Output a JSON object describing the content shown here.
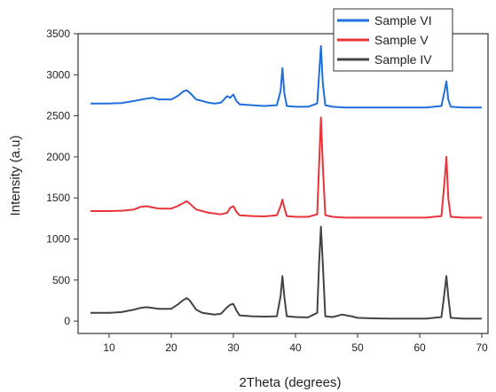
{
  "chart_data": {
    "type": "line",
    "title": "",
    "xlabel": "2Theta (degrees)",
    "ylabel": "Intensity (a.u)",
    "xlim": [
      5,
      71
    ],
    "ylim": [
      -150,
      3500
    ],
    "xticks": [
      10,
      20,
      30,
      40,
      50,
      60,
      70
    ],
    "yticks": [
      0,
      500,
      1000,
      1500,
      2000,
      2500,
      3000,
      3500
    ],
    "grid": false,
    "legend": "top-right",
    "colors": {
      "Sample VI": "#1f6fdc",
      "Sample V": "#e8343a",
      "Sample IV": "#444444"
    },
    "series": [
      {
        "name": "Sample VI",
        "x": [
          7,
          10,
          12,
          14,
          16,
          17,
          18,
          20,
          21,
          22,
          22.5,
          23,
          24,
          25,
          26,
          27,
          28,
          29,
          29.5,
          30,
          30.5,
          31,
          33,
          35,
          37,
          37.6,
          37.9,
          38.2,
          38.6,
          40,
          42,
          43.5,
          43.8,
          44.1,
          44.4,
          44.8,
          46,
          48,
          50,
          52,
          55,
          58,
          61,
          63.5,
          64.0,
          64.3,
          64.6,
          65,
          67,
          70
        ],
        "y": [
          2650,
          2650,
          2655,
          2680,
          2710,
          2720,
          2700,
          2700,
          2740,
          2800,
          2810,
          2780,
          2700,
          2680,
          2660,
          2650,
          2660,
          2740,
          2720,
          2760,
          2680,
          2640,
          2630,
          2620,
          2630,
          2800,
          3080,
          2780,
          2620,
          2610,
          2610,
          2650,
          3000,
          3350,
          2900,
          2630,
          2610,
          2600,
          2600,
          2600,
          2600,
          2600,
          2600,
          2620,
          2800,
          2920,
          2700,
          2610,
          2600,
          2600
        ]
      },
      {
        "name": "Sample V",
        "x": [
          7,
          10,
          12,
          14,
          15,
          16,
          17,
          18,
          20,
          21,
          22,
          22.5,
          23,
          24,
          25,
          26,
          27,
          28,
          29,
          29.5,
          30,
          30.5,
          31,
          33,
          35,
          37,
          37.6,
          37.9,
          38.2,
          38.6,
          40,
          42,
          43.5,
          43.8,
          44.1,
          44.4,
          44.8,
          46,
          48,
          50,
          52,
          55,
          58,
          61,
          63.5,
          64.0,
          64.3,
          64.6,
          65,
          67,
          70
        ],
        "y": [
          1340,
          1340,
          1345,
          1360,
          1390,
          1400,
          1385,
          1370,
          1370,
          1400,
          1440,
          1460,
          1430,
          1360,
          1340,
          1320,
          1310,
          1300,
          1320,
          1380,
          1400,
          1330,
          1290,
          1280,
          1275,
          1290,
          1400,
          1480,
          1380,
          1280,
          1270,
          1270,
          1300,
          1900,
          2480,
          1900,
          1290,
          1270,
          1260,
          1260,
          1260,
          1260,
          1260,
          1260,
          1280,
          1700,
          2000,
          1500,
          1270,
          1260,
          1260
        ]
      },
      {
        "name": "Sample IV",
        "x": [
          7,
          10,
          12,
          14,
          15,
          16,
          17,
          18,
          20,
          21,
          22,
          22.5,
          23,
          24,
          25,
          26,
          27,
          28,
          29,
          29.5,
          30,
          30.5,
          31,
          33,
          35,
          37,
          37.6,
          37.9,
          38.2,
          38.6,
          40,
          42,
          43.5,
          43.8,
          44.1,
          44.4,
          44.8,
          46,
          47.5,
          49,
          50,
          52,
          55,
          58,
          61,
          63.5,
          64.0,
          64.3,
          64.6,
          65,
          67,
          70
        ],
        "y": [
          100,
          100,
          110,
          140,
          160,
          170,
          160,
          150,
          150,
          200,
          260,
          280,
          250,
          140,
          100,
          90,
          80,
          90,
          170,
          200,
          210,
          130,
          70,
          60,
          55,
          60,
          300,
          550,
          300,
          60,
          50,
          45,
          100,
          700,
          1150,
          700,
          60,
          50,
          80,
          60,
          40,
          35,
          30,
          30,
          30,
          50,
          350,
          550,
          300,
          40,
          30,
          30
        ]
      }
    ]
  }
}
